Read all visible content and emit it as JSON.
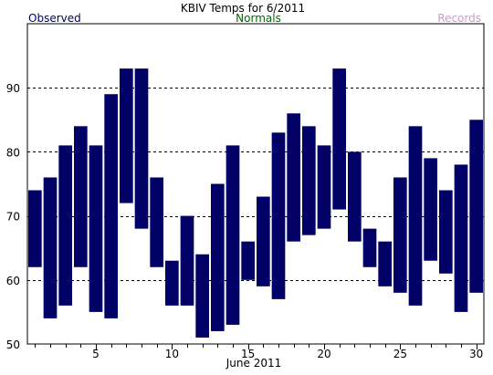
{
  "chart_data": {
    "type": "bar",
    "title": "KBIV Temps for 6/2011",
    "legend": {
      "observed": "Observed",
      "normals": "Normals",
      "records": "Records",
      "placement": "top"
    },
    "xlabel": "June 2011",
    "ylabel": "",
    "x_tick_labels": [
      "5",
      "10",
      "15",
      "20",
      "25",
      "30"
    ],
    "y_tick_labels": [
      "50",
      "60",
      "70",
      "80",
      "90"
    ],
    "ylim": [
      50,
      100
    ],
    "xlim": [
      0.5,
      30.5
    ],
    "grid": "horizontal dashed at 60, 70, 80, 90",
    "colors": {
      "observed": "#000066",
      "normals": "#006600",
      "records": "#cc99cc",
      "grid": "#000000",
      "frame": "#000000"
    },
    "series": [
      {
        "name": "Observed",
        "days": [
          1,
          2,
          3,
          4,
          5,
          6,
          7,
          8,
          9,
          10,
          11,
          12,
          13,
          14,
          15,
          16,
          17,
          18,
          19,
          20,
          21,
          22,
          23,
          24,
          25,
          26,
          27,
          28,
          29,
          30
        ],
        "low": [
          62,
          54,
          56,
          62,
          55,
          54,
          72,
          68,
          62,
          56,
          56,
          51,
          52,
          53,
          60,
          59,
          57,
          66,
          67,
          68,
          71,
          66,
          62,
          59,
          58,
          56,
          63,
          61,
          55,
          58
        ],
        "high": [
          74,
          76,
          81,
          84,
          81,
          89,
          93,
          93,
          76,
          63,
          70,
          64,
          75,
          81,
          66,
          73,
          83,
          86,
          84,
          81,
          93,
          80,
          68,
          66,
          76,
          84,
          79,
          74,
          78,
          85
        ]
      }
    ]
  }
}
